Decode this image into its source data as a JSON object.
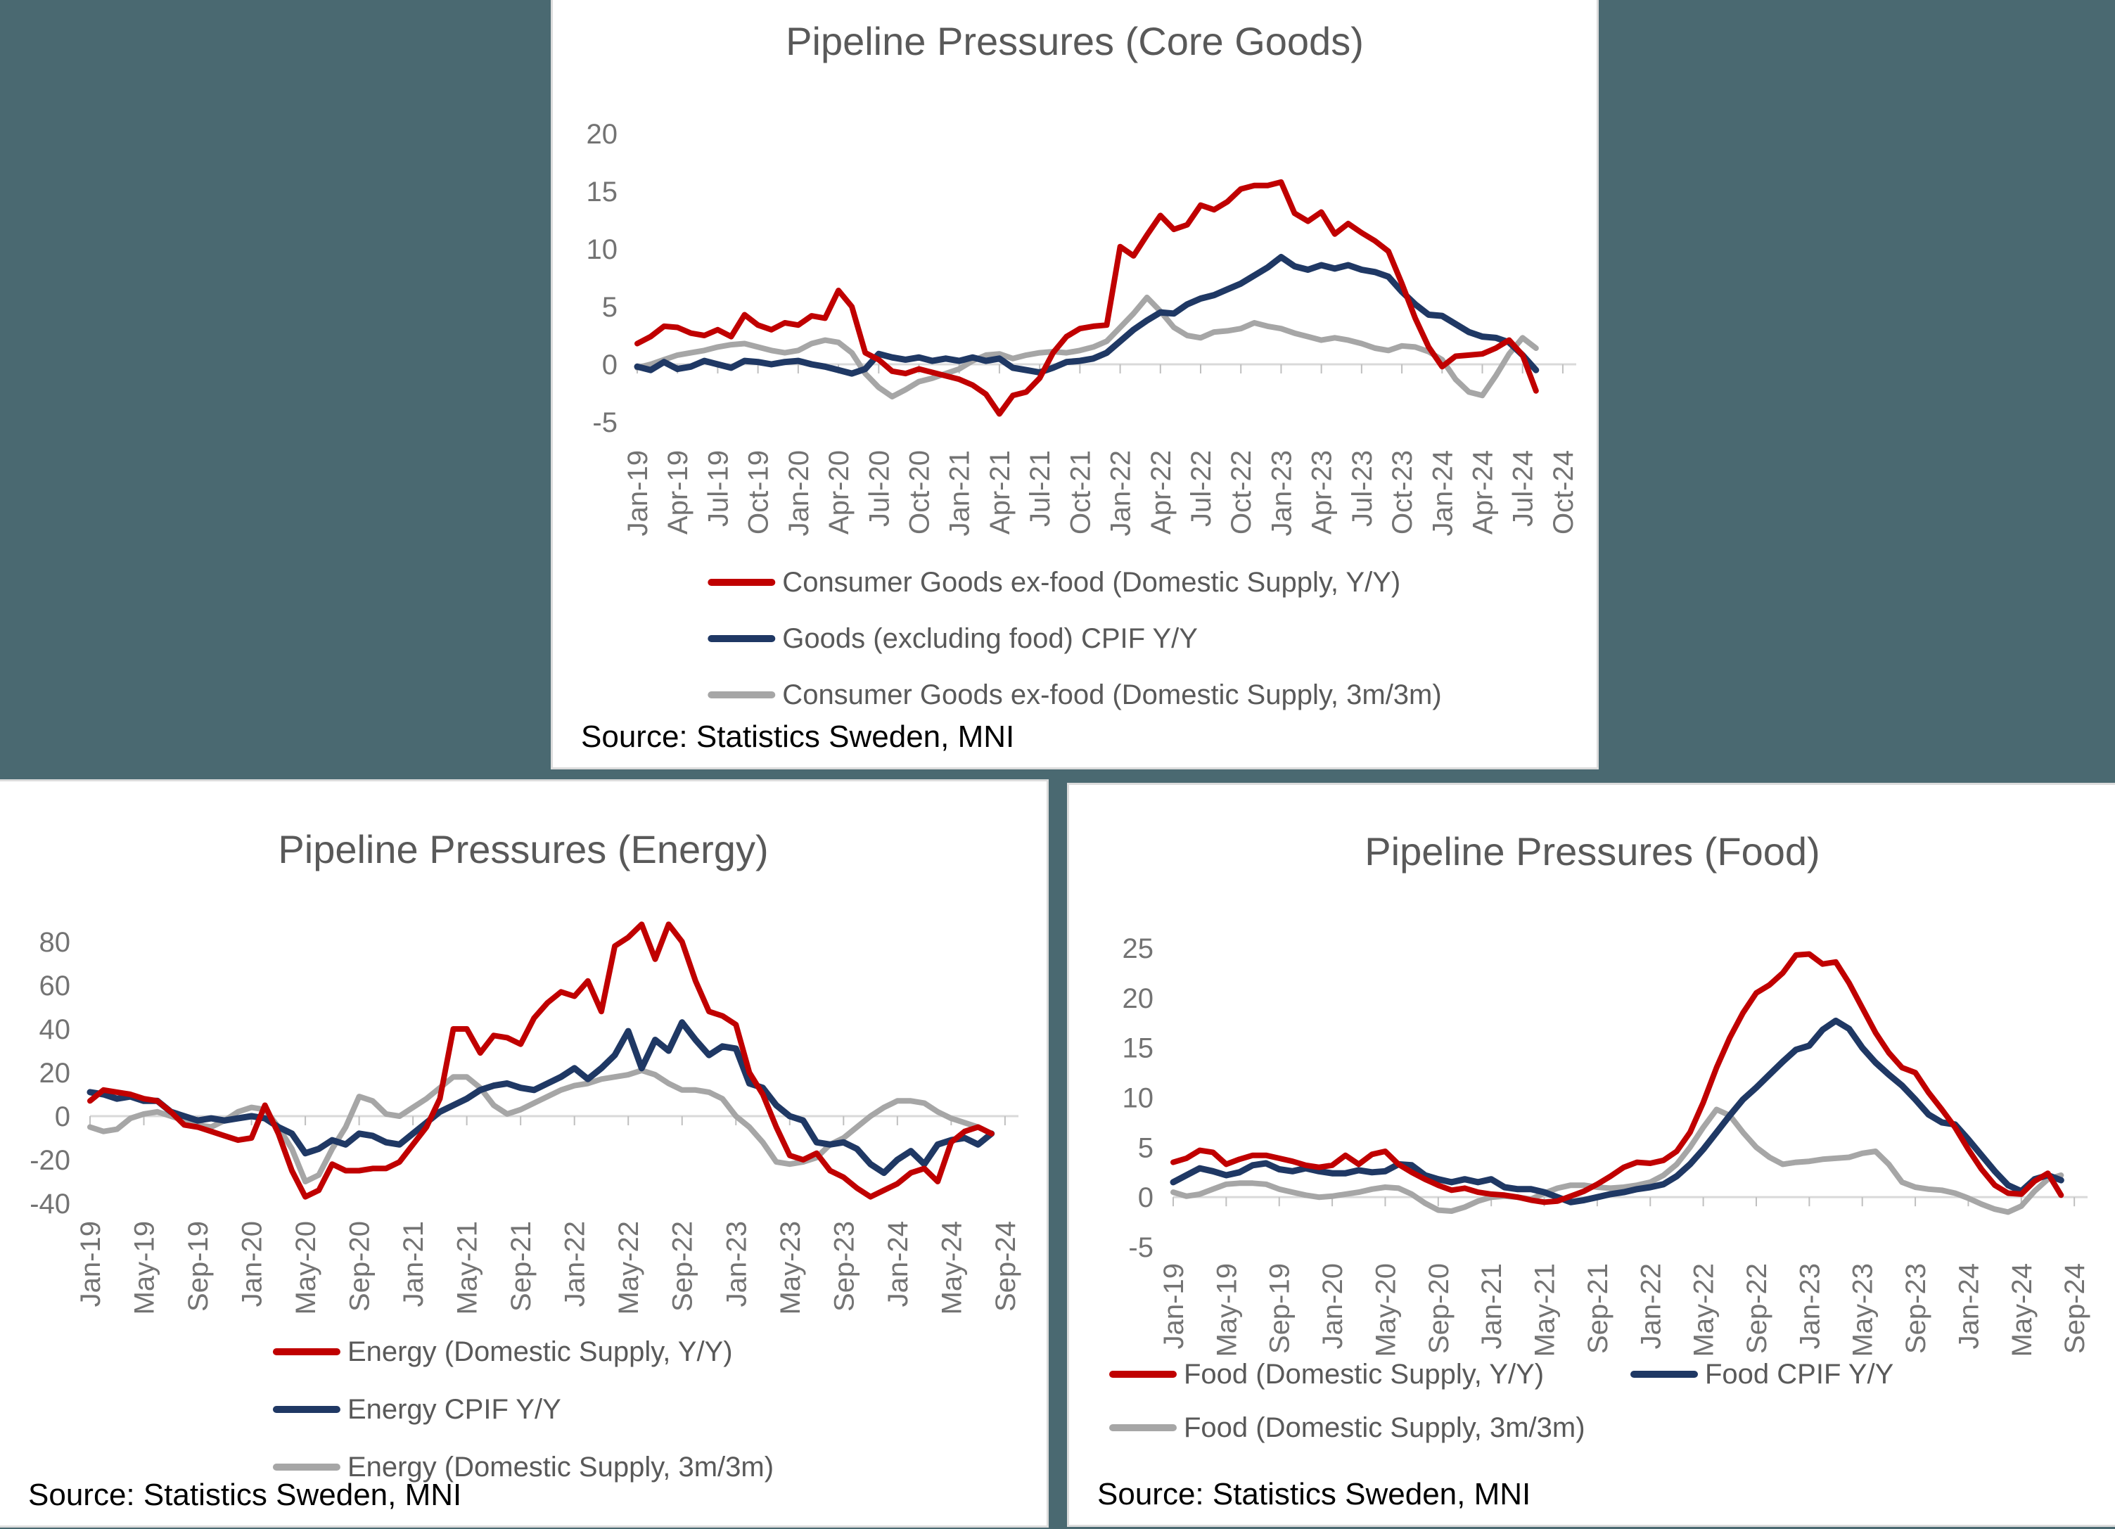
{
  "page": {
    "background_color": "#4A6971",
    "panel_border_color": "#DCDCDC",
    "accent_colors": {
      "red": "#C00000",
      "navy": "#1F3864",
      "gray": "#A6A6A6"
    }
  },
  "chart_data": [
    {
      "type": "line",
      "title": "Pipeline Pressures (Core Goods)",
      "source": "Source: Statistics Sweden, MNI",
      "xlabel": "",
      "ylabel": "",
      "grid": "zero-line-only",
      "legend_position": "bottom-stacked",
      "legend_rows": [
        [
          0
        ],
        [
          1
        ],
        [
          2
        ]
      ],
      "ylim": [
        -5,
        20
      ],
      "yticks": [
        20,
        15,
        10,
        5,
        0,
        -5
      ],
      "x_ticks": [
        "Jan-19",
        "Apr-19",
        "Jul-19",
        "Oct-19",
        "Jan-20",
        "Apr-20",
        "Jul-20",
        "Oct-20",
        "Jan-21",
        "Apr-21",
        "Jul-21",
        "Oct-21",
        "Jan-22",
        "Apr-22",
        "Jul-22",
        "Oct-22",
        "Jan-23",
        "Apr-23",
        "Jul-23",
        "Oct-23",
        "Jan-24",
        "Apr-24",
        "Jul-24",
        "Oct-24"
      ],
      "tick_interval_months": 3,
      "x": [
        "Jan-19",
        "Feb-19",
        "Mar-19",
        "Apr-19",
        "May-19",
        "Jun-19",
        "Jul-19",
        "Aug-19",
        "Sep-19",
        "Oct-19",
        "Nov-19",
        "Dec-19",
        "Jan-20",
        "Feb-20",
        "Mar-20",
        "Apr-20",
        "May-20",
        "Jun-20",
        "Jul-20",
        "Aug-20",
        "Sep-20",
        "Oct-20",
        "Nov-20",
        "Dec-20",
        "Jan-21",
        "Feb-21",
        "Mar-21",
        "Apr-21",
        "May-21",
        "Jun-21",
        "Jul-21",
        "Aug-21",
        "Sep-21",
        "Oct-21",
        "Nov-21",
        "Dec-21",
        "Jan-22",
        "Feb-22",
        "Mar-22",
        "Apr-22",
        "May-22",
        "Jun-22",
        "Jul-22",
        "Aug-22",
        "Sep-22",
        "Oct-22",
        "Nov-22",
        "Dec-22",
        "Jan-23",
        "Feb-23",
        "Mar-23",
        "Apr-23",
        "May-23",
        "Jun-23",
        "Jul-23",
        "Aug-23",
        "Sep-23",
        "Oct-23",
        "Nov-23",
        "Dec-23",
        "Jan-24",
        "Feb-24",
        "Mar-24",
        "Apr-24",
        "May-24",
        "Jun-24",
        "Jul-24",
        "Aug-24"
      ],
      "series": [
        {
          "name": "Consumer Goods ex-food (Domestic Supply, Y/Y)",
          "color": "#C00000",
          "values": [
            1.8,
            2.4,
            3.3,
            3.2,
            2.7,
            2.5,
            3.0,
            2.4,
            4.3,
            3.4,
            3.0,
            3.6,
            3.4,
            4.2,
            4.0,
            6.4,
            5.0,
            1.0,
            0.4,
            -0.6,
            -0.8,
            -0.4,
            -0.7,
            -1.0,
            -1.3,
            -1.8,
            -2.6,
            -4.3,
            -2.7,
            -2.4,
            -1.2,
            1.0,
            2.4,
            3.1,
            3.3,
            3.4,
            10.2,
            9.4,
            11.2,
            12.9,
            11.7,
            12.1,
            13.8,
            13.4,
            14.1,
            15.2,
            15.5,
            15.5,
            15.8,
            13.1,
            12.4,
            13.2,
            11.3,
            12.2,
            11.4,
            10.7,
            9.8,
            7.0,
            4.0,
            1.5,
            -0.2,
            0.7,
            0.8,
            0.9,
            1.4,
            2.1,
            0.8,
            -2.3
          ]
        },
        {
          "name": "Goods (excluding food) CPIF Y/Y",
          "color": "#1F3864",
          "values": [
            -0.2,
            -0.5,
            0.2,
            -0.4,
            -0.2,
            0.3,
            0.0,
            -0.3,
            0.3,
            0.2,
            0.0,
            0.2,
            0.3,
            0.0,
            -0.2,
            -0.5,
            -0.8,
            -0.4,
            0.9,
            0.6,
            0.4,
            0.6,
            0.3,
            0.5,
            0.3,
            0.6,
            0.3,
            0.5,
            -0.3,
            -0.5,
            -0.7,
            -0.3,
            0.2,
            0.3,
            0.5,
            1.0,
            2.0,
            3.0,
            3.8,
            4.5,
            4.4,
            5.2,
            5.7,
            6.0,
            6.5,
            7.0,
            7.7,
            8.4,
            9.3,
            8.5,
            8.2,
            8.6,
            8.3,
            8.6,
            8.2,
            8.0,
            7.6,
            6.3,
            5.2,
            4.3,
            4.2,
            3.5,
            2.8,
            2.4,
            2.3,
            1.9,
            0.8,
            -0.5
          ]
        },
        {
          "name": "Consumer Goods ex-food (Domestic Supply, 3m/3m)",
          "color": "#A6A6A6",
          "values": [
            -0.3,
            0.0,
            0.4,
            0.8,
            1.0,
            1.2,
            1.5,
            1.7,
            1.8,
            1.5,
            1.2,
            1.0,
            1.2,
            1.8,
            2.1,
            1.9,
            1.0,
            -0.8,
            -2.0,
            -2.8,
            -2.2,
            -1.5,
            -1.2,
            -0.8,
            -0.4,
            0.3,
            0.8,
            0.9,
            0.5,
            0.8,
            1.0,
            1.1,
            1.0,
            1.2,
            1.5,
            2.0,
            3.2,
            4.4,
            5.8,
            4.6,
            3.2,
            2.5,
            2.3,
            2.8,
            2.9,
            3.1,
            3.6,
            3.3,
            3.1,
            2.7,
            2.4,
            2.1,
            2.3,
            2.1,
            1.8,
            1.4,
            1.2,
            1.6,
            1.5,
            1.1,
            0.4,
            -1.3,
            -2.4,
            -2.7,
            -1.0,
            0.9,
            2.3,
            1.4
          ]
        }
      ]
    },
    {
      "type": "line",
      "title": "Pipeline Pressures (Energy)",
      "source": "Source: Statistics Sweden, MNI",
      "xlabel": "",
      "ylabel": "",
      "grid": "zero-line-only",
      "legend_position": "bottom-stacked",
      "legend_rows": [
        [
          0
        ],
        [
          1
        ],
        [
          2
        ]
      ],
      "ylim": [
        -40,
        80
      ],
      "yticks": [
        80,
        60,
        40,
        20,
        0,
        -20,
        -40
      ],
      "x_ticks": [
        "Jan-19",
        "May-19",
        "Sep-19",
        "Jan-20",
        "May-20",
        "Sep-20",
        "Jan-21",
        "May-21",
        "Sep-21",
        "Jan-22",
        "May-22",
        "Sep-22",
        "Jan-23",
        "May-23",
        "Sep-23",
        "Jan-24",
        "May-24",
        "Sep-24"
      ],
      "tick_interval_months": 4,
      "x": [
        "Jan-19",
        "Feb-19",
        "Mar-19",
        "Apr-19",
        "May-19",
        "Jun-19",
        "Jul-19",
        "Aug-19",
        "Sep-19",
        "Oct-19",
        "Nov-19",
        "Dec-19",
        "Jan-20",
        "Feb-20",
        "Mar-20",
        "Apr-20",
        "May-20",
        "Jun-20",
        "Jul-20",
        "Aug-20",
        "Sep-20",
        "Oct-20",
        "Nov-20",
        "Dec-20",
        "Jan-21",
        "Feb-21",
        "Mar-21",
        "Apr-21",
        "May-21",
        "Jun-21",
        "Jul-21",
        "Aug-21",
        "Sep-21",
        "Oct-21",
        "Nov-21",
        "Dec-21",
        "Jan-22",
        "Feb-22",
        "Mar-22",
        "Apr-22",
        "May-22",
        "Jun-22",
        "Jul-22",
        "Aug-22",
        "Sep-22",
        "Oct-22",
        "Nov-22",
        "Dec-22",
        "Jan-23",
        "Feb-23",
        "Mar-23",
        "Apr-23",
        "May-23",
        "Jun-23",
        "Jul-23",
        "Aug-23",
        "Sep-23",
        "Oct-23",
        "Nov-23",
        "Dec-23",
        "Jan-24",
        "Feb-24",
        "Mar-24",
        "Apr-24",
        "May-24",
        "Jun-24",
        "Jul-24",
        "Aug-24"
      ],
      "series": [
        {
          "name": "Energy (Domestic Supply, Y/Y)",
          "color": "#C00000",
          "values": [
            7,
            12,
            11,
            10,
            8,
            7,
            2,
            -4,
            -5,
            -7,
            -9,
            -11,
            -10,
            5,
            -8,
            -25,
            -37,
            -34,
            -22,
            -25,
            -25,
            -24,
            -24,
            -21,
            -13,
            -5,
            8,
            40,
            40,
            29,
            37,
            36,
            33,
            45,
            52,
            57,
            55,
            62,
            48,
            78,
            82,
            88,
            72,
            88,
            80,
            62,
            48,
            46,
            42,
            20,
            10,
            -5,
            -18,
            -20,
            -17,
            -25,
            -28,
            -33,
            -37,
            -34,
            -31,
            -26,
            -24,
            -30,
            -12,
            -7,
            -5,
            -8
          ]
        },
        {
          "name": "Energy CPIF Y/Y",
          "color": "#1F3864",
          "values": [
            11,
            10,
            8,
            9,
            7,
            7,
            2,
            0,
            -2,
            -1,
            -2,
            -1,
            0,
            -1,
            -5,
            -8,
            -17,
            -15,
            -11,
            -13,
            -8,
            -9,
            -12,
            -13,
            -8,
            -3,
            2,
            5,
            8,
            12,
            14,
            15,
            13,
            12,
            15,
            18,
            22,
            17,
            22,
            28,
            39,
            22,
            35,
            30,
            43,
            35,
            28,
            32,
            31,
            15,
            13,
            5,
            0,
            -2,
            -12,
            -13,
            -12,
            -15,
            -22,
            -26,
            -20,
            -16,
            -22,
            -13,
            -11,
            -10,
            -13,
            -8
          ]
        },
        {
          "name": "Energy (Domestic Supply, 3m/3m)",
          "color": "#A6A6A6",
          "values": [
            -5,
            -7,
            -6,
            -1,
            1,
            2,
            0,
            -2,
            -4,
            -5,
            -2,
            2,
            4,
            3,
            -5,
            -15,
            -30,
            -27,
            -15,
            -5,
            9,
            7,
            1,
            0,
            4,
            8,
            13,
            18,
            18,
            13,
            5,
            1,
            3,
            6,
            9,
            12,
            14,
            15,
            17,
            18,
            19,
            21,
            19,
            15,
            12,
            12,
            11,
            8,
            0,
            -5,
            -12,
            -21,
            -22,
            -21,
            -19,
            -13,
            -10,
            -5,
            0,
            4,
            7,
            7,
            6,
            2,
            -1,
            -3,
            -5,
            -8
          ]
        }
      ]
    },
    {
      "type": "line",
      "title": "Pipeline Pressures (Food)",
      "source": "Source: Statistics Sweden, MNI",
      "xlabel": "",
      "ylabel": "",
      "grid": "zero-line-only",
      "legend_position": "bottom-two-column",
      "legend_rows": [
        [
          0,
          1
        ],
        [
          2
        ]
      ],
      "ylim": [
        -5,
        25
      ],
      "yticks": [
        25,
        20,
        15,
        10,
        5,
        0,
        -5
      ],
      "x_ticks": [
        "Jan-19",
        "May-19",
        "Sep-19",
        "Jan-20",
        "May-20",
        "Sep-20",
        "Jan-21",
        "May-21",
        "Sep-21",
        "Jan-22",
        "May-22",
        "Sep-22",
        "Jan-23",
        "May-23",
        "Sep-23",
        "Jan-24",
        "May-24",
        "Sep-24"
      ],
      "tick_interval_months": 4,
      "x": [
        "Jan-19",
        "Feb-19",
        "Mar-19",
        "Apr-19",
        "May-19",
        "Jun-19",
        "Jul-19",
        "Aug-19",
        "Sep-19",
        "Oct-19",
        "Nov-19",
        "Dec-19",
        "Jan-20",
        "Feb-20",
        "Mar-20",
        "Apr-20",
        "May-20",
        "Jun-20",
        "Jul-20",
        "Aug-20",
        "Sep-20",
        "Oct-20",
        "Nov-20",
        "Dec-20",
        "Jan-21",
        "Feb-21",
        "Mar-21",
        "Apr-21",
        "May-21",
        "Jun-21",
        "Jul-21",
        "Aug-21",
        "Sep-21",
        "Oct-21",
        "Nov-21",
        "Dec-21",
        "Jan-22",
        "Feb-22",
        "Mar-22",
        "Apr-22",
        "May-22",
        "Jun-22",
        "Jul-22",
        "Aug-22",
        "Sep-22",
        "Oct-22",
        "Nov-22",
        "Dec-22",
        "Jan-23",
        "Feb-23",
        "Mar-23",
        "Apr-23",
        "May-23",
        "Jun-23",
        "Jul-23",
        "Aug-23",
        "Sep-23",
        "Oct-23",
        "Nov-23",
        "Dec-23",
        "Jan-24",
        "Feb-24",
        "Mar-24",
        "Apr-24",
        "May-24",
        "Jun-24",
        "Jul-24",
        "Aug-24"
      ],
      "series": [
        {
          "name": "Food (Domestic Supply, Y/Y)",
          "color": "#C00000",
          "values": [
            3.5,
            3.9,
            4.7,
            4.5,
            3.3,
            3.8,
            4.2,
            4.2,
            3.9,
            3.6,
            3.2,
            3.0,
            3.2,
            4.2,
            3.3,
            4.3,
            4.6,
            3.3,
            2.5,
            1.8,
            1.2,
            0.7,
            0.9,
            0.5,
            0.3,
            0.2,
            0.0,
            -0.3,
            -0.5,
            -0.4,
            0.1,
            0.6,
            1.3,
            2.1,
            3.0,
            3.5,
            3.4,
            3.7,
            4.6,
            6.5,
            9.5,
            13.0,
            16.0,
            18.5,
            20.5,
            21.3,
            22.5,
            24.3,
            24.4,
            23.4,
            23.6,
            21.5,
            19.0,
            16.5,
            14.5,
            13.0,
            12.5,
            10.5,
            8.8,
            7.0,
            4.8,
            2.8,
            1.2,
            0.4,
            0.3,
            1.6,
            2.4,
            0.2
          ]
        },
        {
          "name": "Food CPIF Y/Y",
          "color": "#1F3864",
          "values": [
            1.5,
            2.2,
            2.9,
            2.6,
            2.2,
            2.5,
            3.2,
            3.4,
            2.8,
            2.6,
            2.9,
            2.6,
            2.4,
            2.4,
            2.7,
            2.5,
            2.6,
            3.3,
            3.2,
            2.2,
            1.8,
            1.5,
            1.8,
            1.5,
            1.8,
            1.0,
            0.8,
            0.8,
            0.5,
            0.0,
            -0.5,
            -0.3,
            0.0,
            0.3,
            0.5,
            0.8,
            1.0,
            1.3,
            2.1,
            3.3,
            4.8,
            6.5,
            8.2,
            9.8,
            11.0,
            12.3,
            13.6,
            14.8,
            15.2,
            16.8,
            17.7,
            16.9,
            15.0,
            13.5,
            12.3,
            11.2,
            9.8,
            8.3,
            7.5,
            7.3,
            5.8,
            4.2,
            2.6,
            1.2,
            0.6,
            1.8,
            2.2,
            1.7
          ]
        },
        {
          "name": "Food (Domestic Supply, 3m/3m)",
          "color": "#A6A6A6",
          "values": [
            0.5,
            0.1,
            0.3,
            0.8,
            1.3,
            1.4,
            1.4,
            1.3,
            0.8,
            0.5,
            0.2,
            0.0,
            0.1,
            0.3,
            0.5,
            0.8,
            1.0,
            0.9,
            0.3,
            -0.6,
            -1.3,
            -1.4,
            -1.0,
            -0.4,
            0.0,
            0.1,
            0.0,
            -0.2,
            0.4,
            0.9,
            1.2,
            1.2,
            1.0,
            0.9,
            1.0,
            1.2,
            1.5,
            2.2,
            3.3,
            5.0,
            7.0,
            8.8,
            8.2,
            6.5,
            5.0,
            4.0,
            3.3,
            3.5,
            3.6,
            3.8,
            3.9,
            4.0,
            4.4,
            4.6,
            3.3,
            1.5,
            1.0,
            0.8,
            0.7,
            0.4,
            -0.1,
            -0.7,
            -1.2,
            -1.5,
            -0.9,
            0.6,
            1.8,
            2.2
          ]
        }
      ]
    }
  ]
}
